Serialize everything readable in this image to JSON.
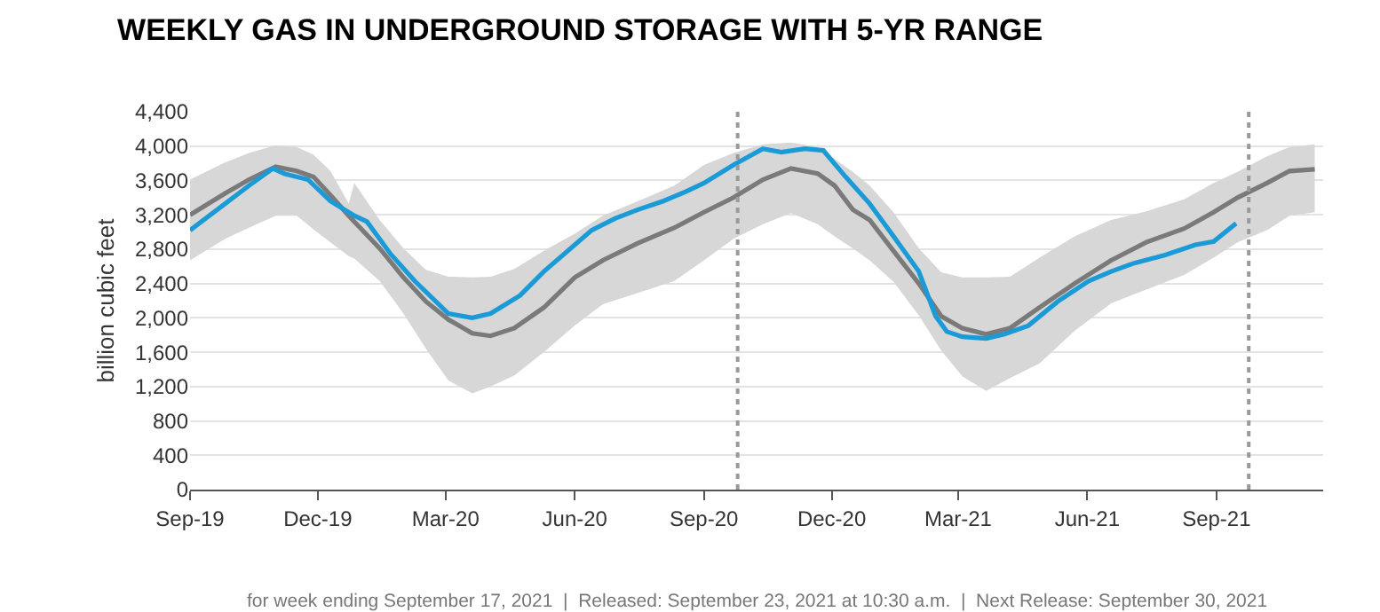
{
  "chart_data": {
    "type": "line",
    "title": "WEEKLY GAS IN UNDERGROUND STORAGE WITH 5-YR RANGE",
    "ylabel": "billion cubic feet",
    "annotations": [
      "for week ending September 17, 2021  |  Released: September 23, 2021 at 10:30 a.m.  |  Next Release: September 30, 2021"
    ],
    "xlim": [
      "2019-09-01",
      "2021-11-16"
    ],
    "xticks": [
      {
        "value": "2019-09-01",
        "label": "Sep-19"
      },
      {
        "value": "2019-12-01",
        "label": "Dec-19"
      },
      {
        "value": "2020-03-01",
        "label": "Mar-20"
      },
      {
        "value": "2020-06-01",
        "label": "Jun-20"
      },
      {
        "value": "2020-09-01",
        "label": "Sep-20"
      },
      {
        "value": "2020-12-01",
        "label": "Dec-20"
      },
      {
        "value": "2021-03-01",
        "label": "Mar-21"
      },
      {
        "value": "2021-06-01",
        "label": "Jun-21"
      },
      {
        "value": "2021-09-01",
        "label": "Sep-21"
      }
    ],
    "ylim": [
      0,
      4400
    ],
    "yticks": [
      0,
      {
        "value": 400,
        "label": "400"
      },
      {
        "value": 800,
        "label": "800"
      },
      {
        "value": 1200,
        "label": "1,200"
      },
      {
        "value": 1600,
        "label": "1,600"
      },
      {
        "value": 2000,
        "label": "2,000"
      },
      {
        "value": 2400,
        "label": "2,400"
      },
      {
        "value": 2800,
        "label": "2,800"
      },
      {
        "value": 3200,
        "label": "3,200"
      },
      {
        "value": 3600,
        "label": "3,600"
      },
      {
        "value": 4000,
        "label": "4,000"
      },
      {
        "value": 4400,
        "label": "4,400"
      }
    ],
    "grid": "y",
    "marker": "none",
    "line_style": "solid",
    "ref_lines": [
      {
        "axis": "x",
        "value": "2020-09-25",
        "color": "#9a9a9a",
        "line_style": "dotted"
      },
      {
        "axis": "x",
        "value": "2021-09-24",
        "color": "#9a9a9a",
        "line_style": "dotted"
      }
    ],
    "series": [
      {
        "color": "#7a7a7a",
        "x": [
          "2019-09-01",
          "2019-09-26",
          "2019-10-13",
          "2019-11-01",
          "2019-11-16",
          "2019-11-28",
          "2019-12-10",
          "2019-12-23",
          "2019-12-27",
          "2020-01-14",
          "2020-01-31",
          "2020-02-16",
          "2020-03-03",
          "2020-03-20",
          "2020-04-02",
          "2020-04-19",
          "2020-05-10",
          "2020-06-01",
          "2020-06-21",
          "2020-07-16",
          "2020-08-11",
          "2020-09-01",
          "2020-09-22",
          "2020-10-13",
          "2020-11-02",
          "2020-11-21",
          "2020-12-03",
          "2020-12-16",
          "2020-12-28",
          "2021-01-14",
          "2021-02-01",
          "2021-02-17",
          "2021-03-04",
          "2021-03-21",
          "2021-04-07",
          "2021-04-28",
          "2021-05-23",
          "2021-06-18",
          "2021-07-13",
          "2021-08-09",
          "2021-08-30",
          "2021-09-16",
          "2021-10-07",
          "2021-10-23",
          "2021-11-10"
        ],
        "values": [
          3200,
          3450,
          3610,
          3760,
          3710,
          3640,
          3430,
          3190,
          3120,
          2810,
          2470,
          2190,
          1980,
          1820,
          1790,
          1880,
          2120,
          2470,
          2670,
          2870,
          3050,
          3230,
          3400,
          3610,
          3740,
          3680,
          3540,
          3260,
          3140,
          2780,
          2400,
          2020,
          1880,
          1810,
          1880,
          2120,
          2400,
          2670,
          2880,
          3040,
          3230,
          3400,
          3570,
          3710,
          3730
        ],
        "lower": [
          2670,
          2920,
          3050,
          3190,
          3190,
          3030,
          2880,
          2720,
          2690,
          2430,
          2050,
          1640,
          1270,
          1120,
          1200,
          1330,
          1600,
          1910,
          2160,
          2290,
          2430,
          2670,
          2920,
          3090,
          3220,
          3090,
          2950,
          2810,
          2670,
          2420,
          2030,
          1620,
          1320,
          1150,
          1300,
          1470,
          1850,
          2170,
          2330,
          2500,
          2700,
          2880,
          3020,
          3190,
          3230
        ],
        "upper": [
          3610,
          3810,
          3920,
          4010,
          3990,
          3900,
          3710,
          3330,
          3570,
          3140,
          2810,
          2560,
          2480,
          2470,
          2480,
          2570,
          2780,
          2980,
          3190,
          3360,
          3540,
          3780,
          3920,
          4020,
          4040,
          3990,
          3850,
          3700,
          3540,
          3230,
          2810,
          2530,
          2470,
          2470,
          2480,
          2700,
          2950,
          3140,
          3240,
          3380,
          3570,
          3700,
          3880,
          3990,
          4020
        ]
      },
      {
        "color": "#1a9ad6",
        "x": [
          "2019-09-01",
          "2019-09-26",
          "2019-10-13",
          "2019-10-30",
          "2019-11-07",
          "2019-11-24",
          "2019-12-10",
          "2019-12-27",
          "2020-01-05",
          "2020-01-22",
          "2020-02-08",
          "2020-02-25",
          "2020-03-03",
          "2020-03-20",
          "2020-04-02",
          "2020-04-23",
          "2020-05-10",
          "2020-06-01",
          "2020-06-13",
          "2020-06-30",
          "2020-07-16",
          "2020-08-03",
          "2020-08-19",
          "2020-09-01",
          "2020-09-22",
          "2020-10-13",
          "2020-10-26",
          "2020-11-12",
          "2020-11-25",
          "2020-12-11",
          "2020-12-28",
          "2021-01-14",
          "2021-02-01",
          "2021-02-13",
          "2021-02-21",
          "2021-03-04",
          "2021-03-21",
          "2021-04-03",
          "2021-04-20",
          "2021-05-11",
          "2021-06-02",
          "2021-06-18",
          "2021-07-05",
          "2021-07-26",
          "2021-08-17",
          "2021-08-30",
          "2021-09-15"
        ],
        "values": [
          3020,
          3330,
          3540,
          3740,
          3680,
          3610,
          3360,
          3190,
          3120,
          2740,
          2430,
          2160,
          2050,
          2000,
          2050,
          2260,
          2540,
          2850,
          3020,
          3160,
          3260,
          3360,
          3470,
          3570,
          3780,
          3970,
          3930,
          3970,
          3950,
          3640,
          3330,
          2950,
          2540,
          2020,
          1840,
          1780,
          1760,
          1810,
          1910,
          2190,
          2430,
          2540,
          2640,
          2730,
          2850,
          2890,
          3100
        ]
      }
    ]
  }
}
